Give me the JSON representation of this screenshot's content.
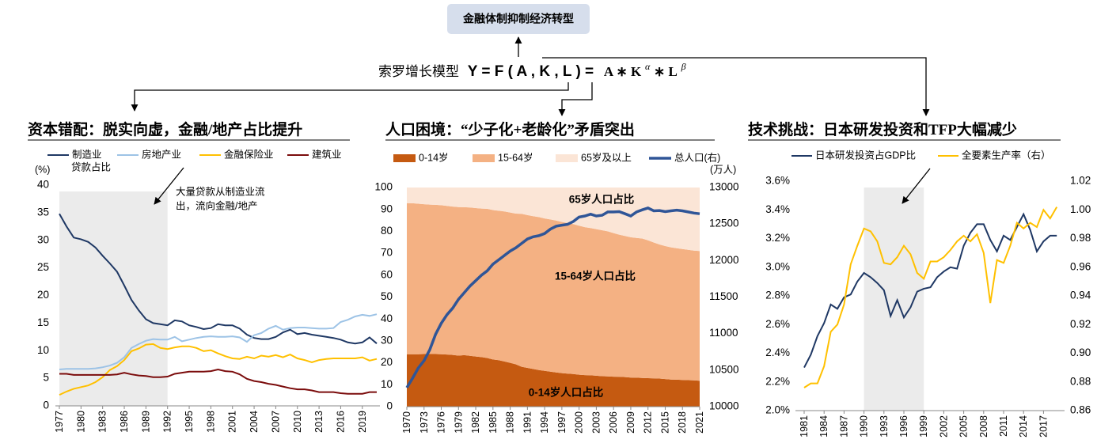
{
  "header": {
    "box": "金融体制抑制经济转型",
    "model": "索罗增长模型",
    "formula": "Y = F ( A , K , L ) =",
    "rhs": "A ∗ K",
    "alpha": "α",
    "rhs2": " ∗ L",
    "beta": "β"
  },
  "chart_data": [
    {
      "type": "line",
      "title": "资本错配：脱实向虚，金融/地产占比提升",
      "ylabel": "(%)",
      "note": "贷款占比",
      "annotation": [
        "大量贷款从制造业流",
        "出，流向金融/地产"
      ],
      "shade": [
        1977,
        1992
      ],
      "x": [
        1977,
        1978,
        1979,
        1980,
        1981,
        1982,
        1983,
        1984,
        1985,
        1986,
        1987,
        1988,
        1989,
        1990,
        1991,
        1992,
        1993,
        1994,
        1995,
        1996,
        1997,
        1998,
        1999,
        2000,
        2001,
        2002,
        2003,
        2004,
        2005,
        2006,
        2007,
        2008,
        2009,
        2010,
        2011,
        2012,
        2013,
        2014,
        2015,
        2016,
        2017,
        2018,
        2019,
        2020,
        2021
      ],
      "xlim": [
        1977,
        2021
      ],
      "xticks": [
        1977,
        1980,
        1983,
        1986,
        1989,
        1992,
        1995,
        1998,
        2001,
        2004,
        2007,
        2010,
        2013,
        2016,
        2019
      ],
      "ylim": [
        0,
        40
      ],
      "yticks": [
        0,
        5,
        10,
        15,
        20,
        25,
        30,
        35,
        40
      ],
      "series": [
        {
          "name": "制造业",
          "color": "#1f3864",
          "values": [
            34.8,
            32.5,
            30.5,
            30.2,
            29.7,
            28.7,
            27.2,
            25.8,
            24.3,
            21.8,
            19.2,
            17.3,
            15.7,
            15.0,
            14.8,
            14.6,
            15.5,
            15.3,
            14.6,
            14.3,
            13.9,
            14.1,
            14.8,
            14.6,
            14.6,
            14.0,
            12.9,
            12.3,
            12.1,
            12.1,
            12.5,
            13.3,
            13.8,
            13.0,
            13.2,
            12.9,
            12.7,
            12.5,
            12.3,
            12.0,
            11.5,
            11.3,
            11.5,
            12.4,
            11.3
          ]
        },
        {
          "name": "房地产业",
          "color": "#9dc3e6",
          "values": [
            6.6,
            6.7,
            6.7,
            6.7,
            6.7,
            6.8,
            7.0,
            7.3,
            7.8,
            8.8,
            10.5,
            11.2,
            11.8,
            12.1,
            12.0,
            12.0,
            12.5,
            11.7,
            12.0,
            12.3,
            12.5,
            12.6,
            12.5,
            12.5,
            12.6,
            12.4,
            11.6,
            12.8,
            13.2,
            14.0,
            14.5,
            13.8,
            14.1,
            14.2,
            14.2,
            14.1,
            14.0,
            14.0,
            14.1,
            15.2,
            15.6,
            16.2,
            16.5,
            16.3,
            16.6
          ]
        },
        {
          "name": "金融保险业",
          "color": "#ffc000",
          "values": [
            2.0,
            2.6,
            3.1,
            3.4,
            3.7,
            4.3,
            5.2,
            6.5,
            7.2,
            8.3,
            9.9,
            10.4,
            11.1,
            11.2,
            10.5,
            10.3,
            10.6,
            10.8,
            10.8,
            10.5,
            9.9,
            10.1,
            9.5,
            9.0,
            8.6,
            8.5,
            8.9,
            8.6,
            9.1,
            8.9,
            9.2,
            8.8,
            9.3,
            8.6,
            8.3,
            7.9,
            8.3,
            8.5,
            8.6,
            8.6,
            8.6,
            8.6,
            8.8,
            8.2,
            8.5
          ]
        },
        {
          "name": "建筑业",
          "color": "#7b0c0c",
          "values": [
            5.8,
            5.8,
            5.6,
            5.6,
            5.6,
            5.6,
            5.6,
            5.6,
            5.7,
            6.0,
            5.7,
            5.5,
            5.4,
            5.2,
            5.2,
            5.3,
            5.8,
            6.0,
            6.2,
            6.2,
            6.2,
            6.3,
            6.6,
            6.3,
            6.2,
            5.7,
            4.9,
            4.5,
            4.3,
            4.0,
            3.8,
            3.5,
            3.2,
            3.0,
            3.0,
            2.8,
            2.5,
            2.5,
            2.5,
            2.3,
            2.2,
            2.2,
            2.2,
            2.5,
            2.5
          ]
        }
      ]
    },
    {
      "type": "area",
      "stacked": true,
      "title": "人口困境：“少子化+老龄化”矛盾突出",
      "y2label": "(万人)",
      "annotations": [
        "65岁人口占比",
        "15-64岁人口占比",
        "0-14岁人口占比"
      ],
      "x": [
        1970,
        1971,
        1972,
        1973,
        1974,
        1975,
        1976,
        1977,
        1978,
        1979,
        1980,
        1981,
        1982,
        1983,
        1984,
        1985,
        1986,
        1987,
        1988,
        1989,
        1990,
        1991,
        1992,
        1993,
        1994,
        1995,
        1996,
        1997,
        1998,
        1999,
        2000,
        2001,
        2002,
        2003,
        2004,
        2005,
        2006,
        2007,
        2008,
        2009,
        2010,
        2011,
        2012,
        2013,
        2014,
        2015,
        2016,
        2017,
        2018,
        2019,
        2020,
        2021
      ],
      "xlim": [
        1970,
        2021
      ],
      "xticks": [
        1970,
        1973,
        1976,
        1979,
        1982,
        1985,
        1988,
        1991,
        1994,
        1997,
        2000,
        2003,
        2006,
        2009,
        2012,
        2015,
        2018,
        2021
      ],
      "ylim": [
        0,
        100
      ],
      "yticks": [
        0,
        10,
        20,
        30,
        40,
        50,
        60,
        70,
        80,
        90,
        100
      ],
      "y2lim": [
        10000,
        13000
      ],
      "y2ticks": [
        10000,
        10500,
        11000,
        11500,
        12000,
        12500,
        13000
      ],
      "series": [
        {
          "name": "0-14岁",
          "color": "#c55a11",
          "values": [
            23.9,
            23.9,
            23.9,
            24.0,
            24.0,
            24.0,
            23.9,
            23.8,
            23.6,
            23.3,
            23.5,
            23.2,
            22.9,
            22.6,
            22.2,
            21.5,
            21.2,
            20.6,
            20.0,
            19.3,
            18.2,
            17.7,
            17.2,
            16.7,
            16.3,
            16.0,
            15.6,
            15.3,
            15.1,
            14.9,
            14.6,
            14.4,
            14.3,
            14.1,
            13.9,
            13.8,
            13.7,
            13.6,
            13.5,
            13.3,
            13.2,
            13.1,
            13.0,
            12.9,
            12.8,
            12.6,
            12.4,
            12.3,
            12.2,
            12.1,
            12.0,
            11.8
          ]
        },
        {
          "name": "15-64岁",
          "color": "#f4b183",
          "values": [
            69.0,
            68.9,
            68.7,
            68.4,
            68.2,
            68.1,
            68.0,
            67.8,
            67.7,
            67.8,
            67.5,
            67.7,
            67.7,
            67.8,
            68.1,
            68.2,
            68.2,
            68.5,
            68.6,
            68.8,
            69.8,
            69.7,
            69.7,
            69.8,
            69.6,
            69.4,
            69.3,
            69.0,
            68.7,
            68.4,
            68.0,
            67.5,
            67.2,
            66.9,
            66.6,
            66.2,
            65.5,
            64.9,
            64.4,
            64.0,
            63.8,
            63.6,
            62.9,
            62.0,
            61.2,
            60.7,
            60.3,
            60.0,
            59.7,
            59.5,
            59.2,
            59.2
          ]
        },
        {
          "name": "65岁及以上",
          "color": "#fbe5d6",
          "values": [
            7.1,
            7.2,
            7.4,
            7.6,
            7.8,
            7.9,
            8.1,
            8.4,
            8.7,
            8.9,
            9.0,
            9.1,
            9.4,
            9.6,
            9.7,
            10.3,
            10.6,
            10.9,
            11.4,
            11.9,
            12.0,
            12.6,
            13.1,
            13.5,
            14.1,
            14.6,
            15.1,
            15.7,
            16.2,
            16.7,
            17.4,
            18.1,
            18.5,
            19.0,
            19.5,
            20.0,
            20.8,
            21.5,
            22.1,
            22.7,
            23.0,
            23.3,
            24.1,
            25.1,
            26.0,
            26.7,
            27.3,
            27.7,
            28.1,
            28.4,
            28.8,
            29.0
          ]
        },
        {
          "name": "总人口(右)",
          "color": "#2f5597",
          "axis": "y2",
          "values": [
            10260,
            10390,
            10530,
            10630,
            10780,
            10990,
            11140,
            11260,
            11350,
            11470,
            11560,
            11650,
            11725,
            11800,
            11860,
            11950,
            12010,
            12070,
            12130,
            12175,
            12235,
            12295,
            12325,
            12340,
            12370,
            12430,
            12470,
            12485,
            12495,
            12535,
            12595,
            12610,
            12635,
            12610,
            12620,
            12665,
            12665,
            12670,
            12640,
            12610,
            12665,
            12695,
            12720,
            12680,
            12685,
            12670,
            12680,
            12690,
            12680,
            12665,
            12650,
            12640
          ]
        }
      ]
    },
    {
      "type": "line",
      "title": "技术挑战：日本研发投资和TFP大幅减少",
      "shade": [
        1990,
        1999
      ],
      "x": [
        1981,
        1982,
        1983,
        1984,
        1985,
        1986,
        1987,
        1988,
        1989,
        1990,
        1991,
        1992,
        1993,
        1994,
        1995,
        1996,
        1997,
        1998,
        1999,
        2000,
        2001,
        2002,
        2003,
        2004,
        2005,
        2006,
        2007,
        2008,
        2009,
        2010,
        2011,
        2012,
        2013,
        2014,
        2015,
        2016,
        2017,
        2018,
        2019
      ],
      "xlim": [
        1980,
        2020
      ],
      "xticks": [
        1981,
        1984,
        1987,
        1990,
        1993,
        1996,
        1999,
        2002,
        2005,
        2008,
        2011,
        2014,
        2017
      ],
      "ylim": [
        2,
        3.6
      ],
      "yticks": [
        {
          "value": 2,
          "label": "2.0%"
        },
        {
          "value": 2.2,
          "label": "2.2%"
        },
        {
          "value": 2.4,
          "label": "2.4%"
        },
        {
          "value": 2.6,
          "label": "2.6%"
        },
        {
          "value": 2.8,
          "label": "2.8%"
        },
        {
          "value": 3,
          "label": "3.0%"
        },
        {
          "value": 3.2,
          "label": "3.2%"
        },
        {
          "value": 3.4,
          "label": "3.4%"
        },
        {
          "value": 3.6,
          "label": "3.6%"
        }
      ],
      "y2lim": [
        0.86,
        1.02
      ],
      "y2ticks": [
        0.86,
        0.88,
        {
          "value": 0.9,
          "label": "0.90"
        },
        0.92,
        0.94,
        0.96,
        0.98,
        {
          "value": 1,
          "label": "1.00"
        },
        1.02
      ],
      "series": [
        {
          "name": "日本研发投资占GDP比",
          "color": "#1f3864",
          "values": [
            2.3,
            2.39,
            2.52,
            2.61,
            2.74,
            2.71,
            2.79,
            2.81,
            2.9,
            2.96,
            2.93,
            2.89,
            2.84,
            2.66,
            2.77,
            2.65,
            2.72,
            2.83,
            2.85,
            2.86,
            2.93,
            2.97,
            3.0,
            2.99,
            3.15,
            3.24,
            3.3,
            3.3,
            3.19,
            3.11,
            3.22,
            3.19,
            3.28,
            3.37,
            3.26,
            3.11,
            3.18,
            3.22,
            3.22
          ]
        },
        {
          "name": "全要素生产率（右）",
          "color": "#ffc000",
          "axis": "y2",
          "values": [
            0.876,
            0.879,
            0.879,
            0.891,
            0.915,
            0.92,
            0.934,
            0.962,
            0.975,
            0.987,
            0.985,
            0.978,
            0.963,
            0.962,
            0.967,
            0.975,
            0.969,
            0.956,
            0.952,
            0.964,
            0.964,
            0.967,
            0.972,
            0.978,
            0.982,
            0.978,
            0.983,
            0.97,
            0.935,
            0.965,
            0.963,
            0.975,
            0.991,
            0.987,
            0.991,
            0.988,
            1.0,
            0.994,
            1.002
          ]
        }
      ]
    }
  ]
}
